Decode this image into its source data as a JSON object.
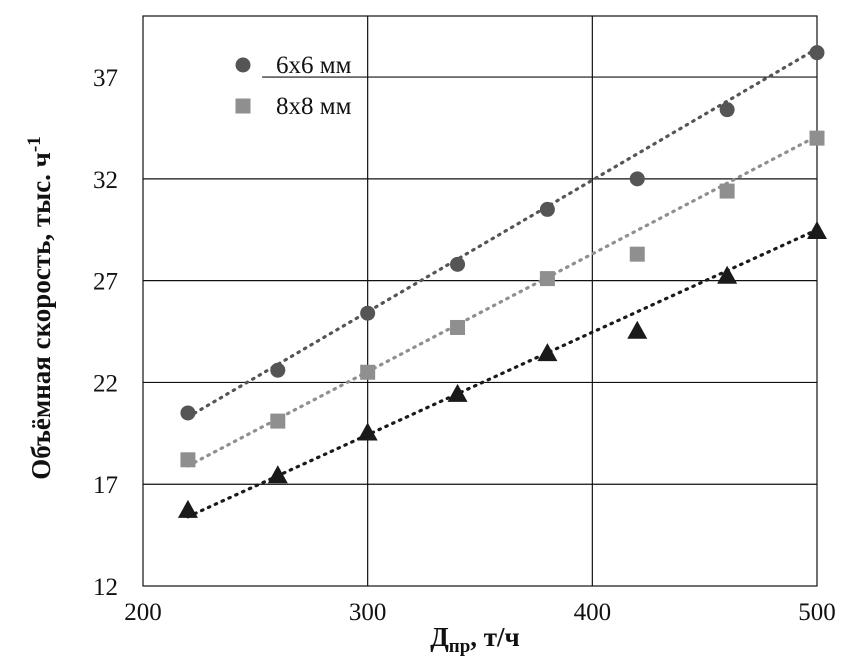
{
  "chart_data": {
    "type": "scatter",
    "xlabel": "Д",
    "xlabel_sub": "пр",
    "xlabel_suffix": ", т/ч",
    "ylabel": "Объёмная скорость, тыс. ч",
    "ylabel_sup": "-1",
    "xlim": [
      200,
      500
    ],
    "ylim": [
      12,
      40
    ],
    "xticks": [
      "200",
      "300",
      "400",
      "500"
    ],
    "yticks": [
      "12",
      "17",
      "22",
      "27",
      "32",
      "37"
    ],
    "grid": true,
    "legend_position": "top-left",
    "series": [
      {
        "name": "6х6 мм",
        "marker": "circle",
        "color": "#555555",
        "x": [
          220,
          260,
          300,
          340,
          380,
          420,
          460,
          500
        ],
        "y": [
          20.5,
          22.6,
          25.4,
          27.8,
          30.5,
          32.0,
          35.4,
          38.2
        ],
        "trend": [
          [
            220,
            20.3
          ],
          [
            500,
            38.4
          ]
        ]
      },
      {
        "name": "8х8 мм",
        "marker": "square",
        "color": "#8f8f8f",
        "x": [
          220,
          260,
          300,
          340,
          380,
          420,
          460,
          500
        ],
        "y": [
          18.2,
          20.1,
          22.5,
          24.7,
          27.1,
          28.3,
          31.4,
          34.0
        ],
        "trend": [
          [
            220,
            17.9
          ],
          [
            500,
            34.1
          ]
        ]
      },
      {
        "marker": "triangle",
        "color": "#1a1a1a",
        "x": [
          220,
          260,
          300,
          340,
          380,
          420,
          460,
          500
        ],
        "y": [
          15.7,
          17.4,
          19.5,
          21.4,
          23.4,
          24.5,
          27.2,
          29.4
        ],
        "trend": [
          [
            220,
            15.4
          ],
          [
            500,
            29.5
          ]
        ]
      }
    ]
  }
}
